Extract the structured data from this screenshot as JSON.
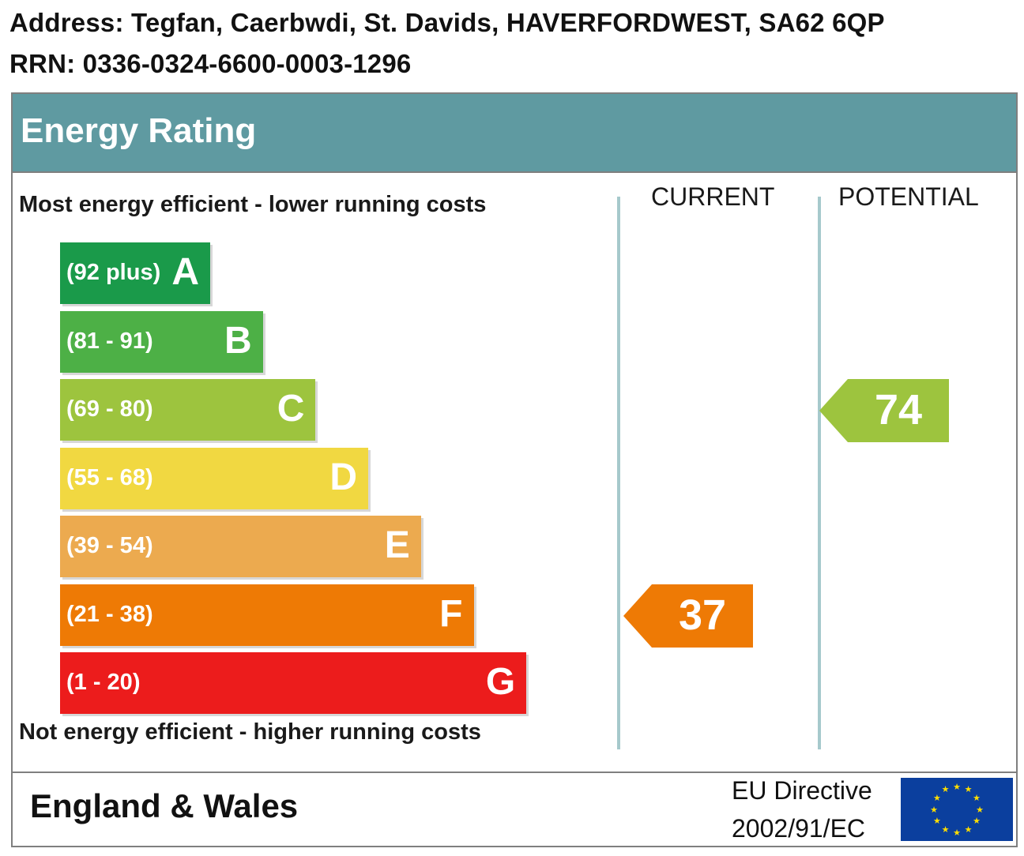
{
  "property": {
    "address": "Address: Tegfan, Caerbwdi, St. Davids, HAVERFORDWEST, SA62 6QP",
    "rrn": "RRN: 0336-0324-6600-0003-1296"
  },
  "chart_data": {
    "type": "bar",
    "title": "Energy Rating",
    "top_caption": "Most energy efficient - lower running costs",
    "bottom_caption": "Not energy efficient - higher running costs",
    "columns": [
      "CURRENT",
      "POTENTIAL"
    ],
    "bands": [
      {
        "letter": "A",
        "range": "(92 plus)",
        "min": 92,
        "max": 100,
        "color": "#1a9a4a"
      },
      {
        "letter": "B",
        "range": "(81 - 91)",
        "min": 81,
        "max": 91,
        "color": "#4db046"
      },
      {
        "letter": "C",
        "range": "(69 - 80)",
        "min": 69,
        "max": 80,
        "color": "#9dc43e"
      },
      {
        "letter": "D",
        "range": "(55 - 68)",
        "min": 55,
        "max": 68,
        "color": "#f1d841"
      },
      {
        "letter": "E",
        "range": "(39 - 54)",
        "min": 39,
        "max": 54,
        "color": "#ecaa4f"
      },
      {
        "letter": "F",
        "range": "(21 - 38)",
        "min": 21,
        "max": 38,
        "color": "#ee7a05"
      },
      {
        "letter": "G",
        "range": "(1 - 20)",
        "min": 1,
        "max": 20,
        "color": "#ec1c1c"
      }
    ],
    "current": {
      "value": 37,
      "band": "F",
      "color": "#ee7a05"
    },
    "potential": {
      "value": 74,
      "band": "C",
      "color": "#9dc43e"
    }
  },
  "footer": {
    "region": "England & Wales",
    "directive_line1": "EU Directive",
    "directive_line2": "2002/91/EC",
    "flag_icon": "eu-flag-icon",
    "flag_color": "#0b3f9e",
    "star_color": "#ffde00"
  }
}
